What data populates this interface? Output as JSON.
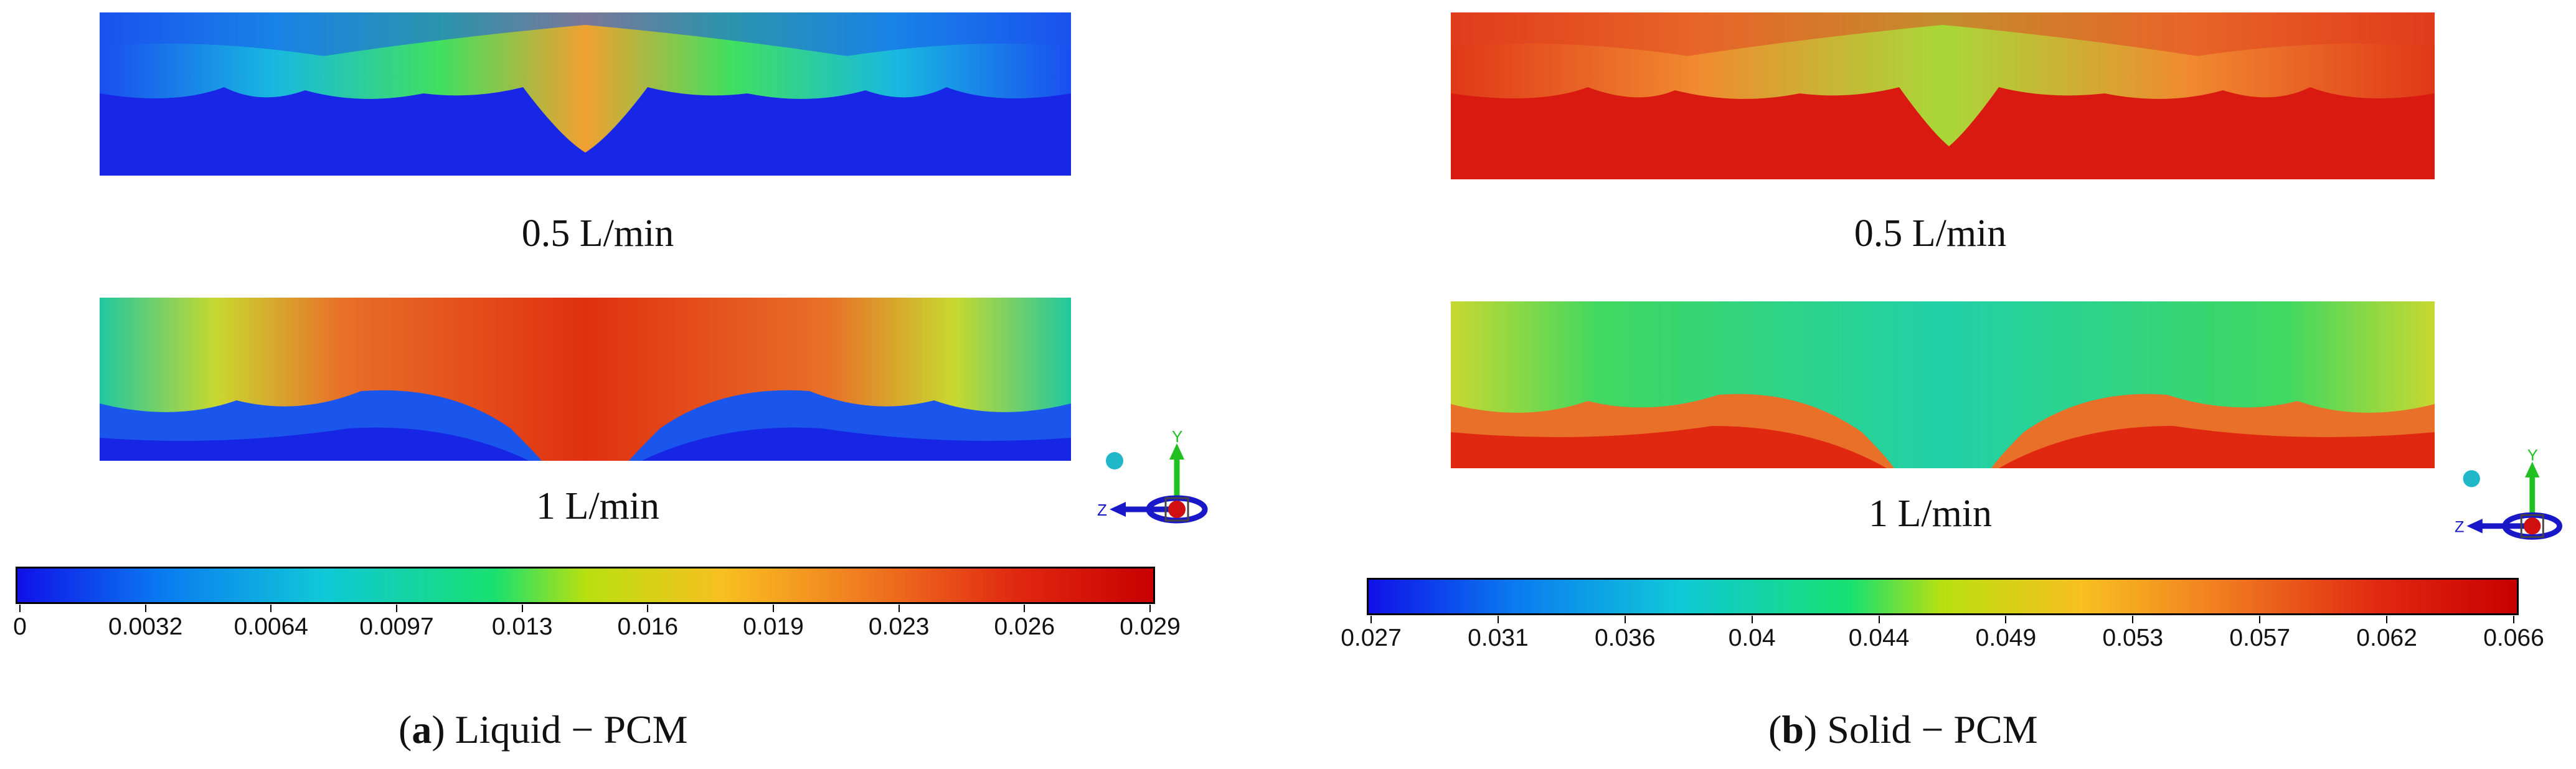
{
  "panels": [
    {
      "caption_letter": "a",
      "caption_text": "Liquid − PCM",
      "rates": [
        "0.5 L/min",
        "1 L/min"
      ],
      "colorbar_ticks": [
        "0",
        "0.0032",
        "0.0064",
        "0.0097",
        "0.013",
        "0.016",
        "0.019",
        "0.023",
        "0.026",
        "0.029"
      ]
    },
    {
      "caption_letter": "b",
      "caption_text": "Solid − PCM",
      "rates": [
        "0.5 L/min",
        "1 L/min"
      ],
      "colorbar_ticks": [
        "0.027",
        "0.031",
        "0.036",
        "0.04",
        "0.044",
        "0.049",
        "0.053",
        "0.057",
        "0.062",
        "0.066"
      ]
    }
  ],
  "axis_triad": {
    "y_label": "Y",
    "z_label": "Z"
  },
  "colormap": [
    "#1010e8",
    "#0a7cf0",
    "#10c8d8",
    "#18e070",
    "#b8e010",
    "#f8c020",
    "#f07820",
    "#e02810",
    "#c80000"
  ]
}
